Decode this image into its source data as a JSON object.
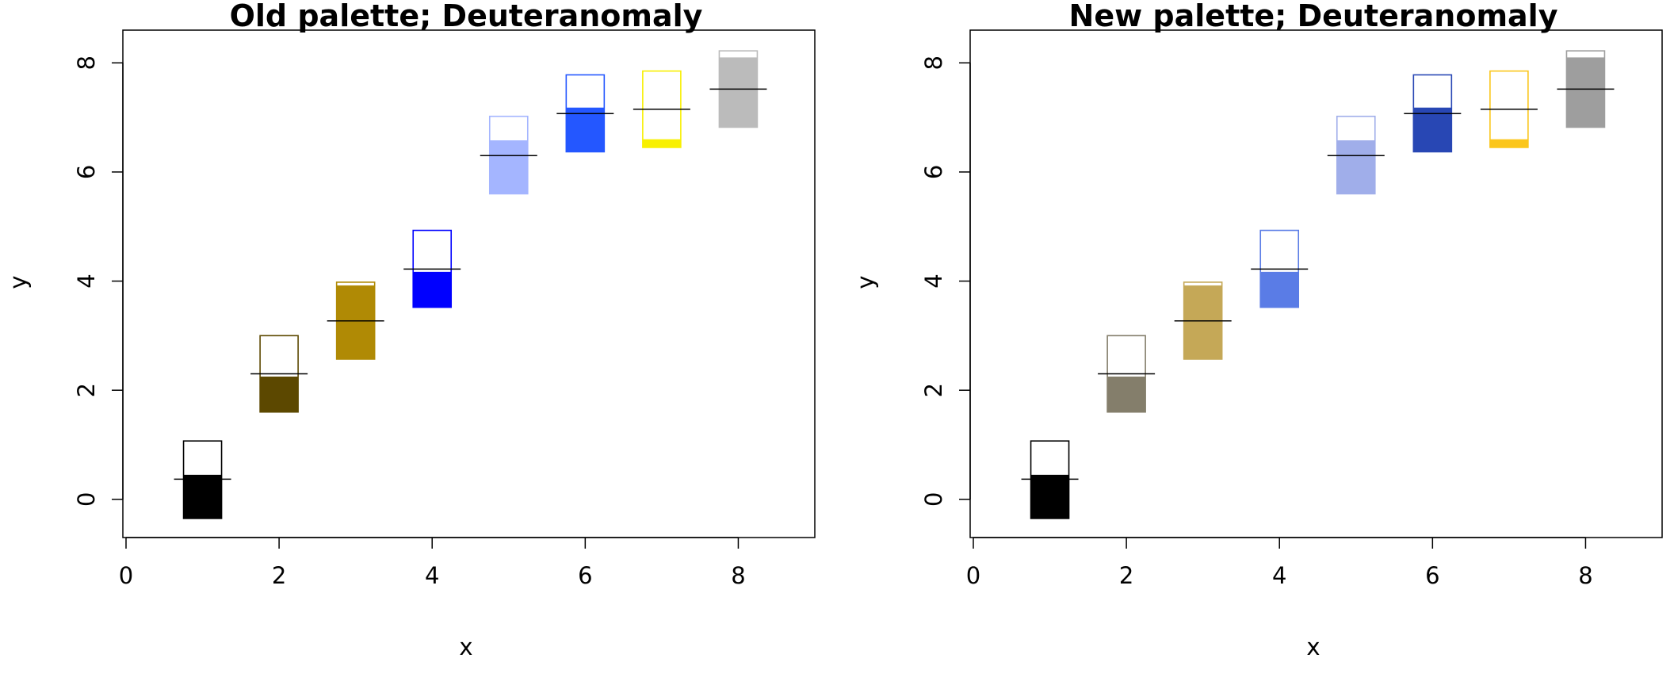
{
  "chart_data": [
    {
      "type": "boxplot",
      "title": "Old palette; Deuteranomaly",
      "xlabel": "x",
      "ylabel": "y",
      "xlim": [
        0,
        9
      ],
      "ylim": [
        -0.7,
        8.6
      ],
      "xticks": [
        0,
        2,
        4,
        6,
        8
      ],
      "yticks": [
        0,
        2,
        4,
        6,
        8
      ],
      "grid": false,
      "legend": "none",
      "boxes": [
        {
          "x": 1,
          "low": -0.35,
          "high": 1.07,
          "mid": 0.45,
          "marker": 0.37,
          "color": "#000000"
        },
        {
          "x": 2,
          "low": 1.6,
          "high": 3.0,
          "mid": 2.25,
          "marker": 2.3,
          "color": "#5c4800"
        },
        {
          "x": 3,
          "low": 2.57,
          "high": 3.98,
          "mid": 3.92,
          "marker": 3.27,
          "color": "#b08a05"
        },
        {
          "x": 4,
          "low": 3.52,
          "high": 4.93,
          "mid": 4.17,
          "marker": 4.22,
          "color": "#0000ff"
        },
        {
          "x": 5,
          "low": 5.6,
          "high": 7.02,
          "mid": 6.58,
          "marker": 6.3,
          "color": "#a4b5ff"
        },
        {
          "x": 6,
          "low": 6.37,
          "high": 7.78,
          "mid": 7.18,
          "marker": 7.07,
          "color": "#2457ff"
        },
        {
          "x": 7,
          "low": 6.45,
          "high": 7.85,
          "mid": 6.6,
          "marker": 7.15,
          "color": "#f8f000"
        },
        {
          "x": 8,
          "low": 6.82,
          "high": 8.22,
          "mid": 8.1,
          "marker": 7.52,
          "color": "#bbbbbb"
        }
      ]
    },
    {
      "type": "boxplot",
      "title": "New palette; Deuteranomaly",
      "xlabel": "x",
      "ylabel": "y",
      "xlim": [
        0,
        9
      ],
      "ylim": [
        -0.7,
        8.6
      ],
      "xticks": [
        0,
        2,
        4,
        6,
        8
      ],
      "yticks": [
        0,
        2,
        4,
        6,
        8
      ],
      "grid": false,
      "legend": "none",
      "boxes": [
        {
          "x": 1,
          "low": -0.35,
          "high": 1.07,
          "mid": 0.45,
          "marker": 0.37,
          "color": "#000000"
        },
        {
          "x": 2,
          "low": 1.6,
          "high": 3.0,
          "mid": 2.25,
          "marker": 2.3,
          "color": "#847e6b"
        },
        {
          "x": 3,
          "low": 2.57,
          "high": 3.98,
          "mid": 3.92,
          "marker": 3.27,
          "color": "#c5a857"
        },
        {
          "x": 4,
          "low": 3.52,
          "high": 4.93,
          "mid": 4.17,
          "marker": 4.22,
          "color": "#5a7ce6"
        },
        {
          "x": 5,
          "low": 5.6,
          "high": 7.02,
          "mid": 6.58,
          "marker": 6.3,
          "color": "#a0aeea"
        },
        {
          "x": 6,
          "low": 6.37,
          "high": 7.78,
          "mid": 7.18,
          "marker": 7.07,
          "color": "#2847b4"
        },
        {
          "x": 7,
          "low": 6.45,
          "high": 7.85,
          "mid": 6.6,
          "marker": 7.15,
          "color": "#fbc61b"
        },
        {
          "x": 8,
          "low": 6.82,
          "high": 8.22,
          "mid": 8.1,
          "marker": 7.52,
          "color": "#9e9e9e"
        }
      ]
    }
  ]
}
